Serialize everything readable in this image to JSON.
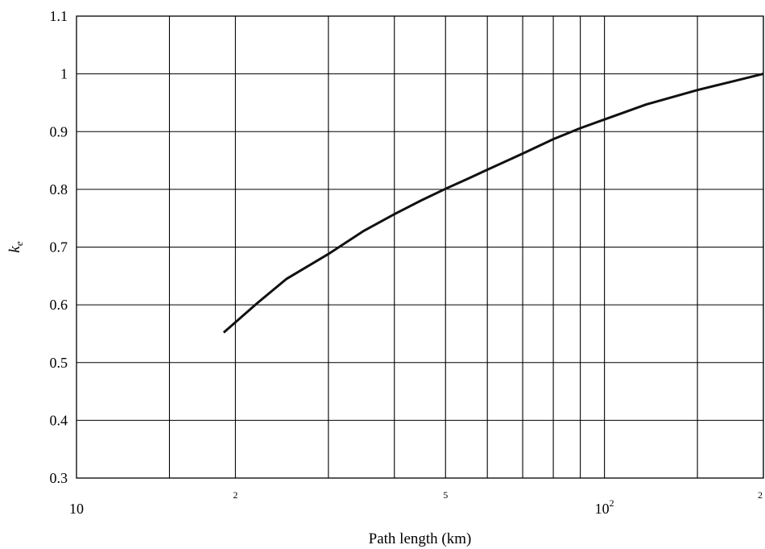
{
  "chart_data": {
    "type": "line",
    "title": "",
    "xlabel": "Path length (km)",
    "ylabel_main": "k",
    "ylabel_sub": "e",
    "x_scale": "log",
    "xlim": [
      10,
      200
    ],
    "ylim": [
      0.3,
      1.1
    ],
    "grid": true,
    "y_ticks": [
      {
        "value": 0.3,
        "label": "0.3"
      },
      {
        "value": 0.4,
        "label": "0.4"
      },
      {
        "value": 0.5,
        "label": "0.5"
      },
      {
        "value": 0.6,
        "label": "0.6"
      },
      {
        "value": 0.7,
        "label": "0.7"
      },
      {
        "value": 0.8,
        "label": "0.8"
      },
      {
        "value": 0.9,
        "label": "0.9"
      },
      {
        "value": 1.0,
        "label": "1"
      },
      {
        "value": 1.1,
        "label": "1.1"
      }
    ],
    "x_gridlines": [
      15,
      20,
      30,
      40,
      50,
      60,
      70,
      80,
      90,
      100,
      150,
      200
    ],
    "x_tick_labels": [
      {
        "value": 10,
        "base": "10",
        "sup": "",
        "style": "major"
      },
      {
        "value": 20,
        "base": "",
        "sup": "2",
        "style": "minor"
      },
      {
        "value": 50,
        "base": "",
        "sup": "5",
        "style": "minor"
      },
      {
        "value": 100,
        "base": "10",
        "sup": "2",
        "style": "major"
      },
      {
        "value": 200,
        "base": "",
        "sup": "2",
        "style": "minor"
      }
    ],
    "series": [
      {
        "x": [
          19.0,
          22,
          25,
          30,
          35,
          40,
          45,
          50,
          55,
          60,
          70,
          80,
          90,
          100,
          120,
          150,
          175,
          200
        ],
        "y": [
          0.552,
          0.603,
          0.645,
          0.688,
          0.728,
          0.757,
          0.781,
          0.801,
          0.818,
          0.834,
          0.862,
          0.887,
          0.906,
          0.921,
          0.947,
          0.972,
          0.987,
          1.0
        ]
      }
    ]
  }
}
